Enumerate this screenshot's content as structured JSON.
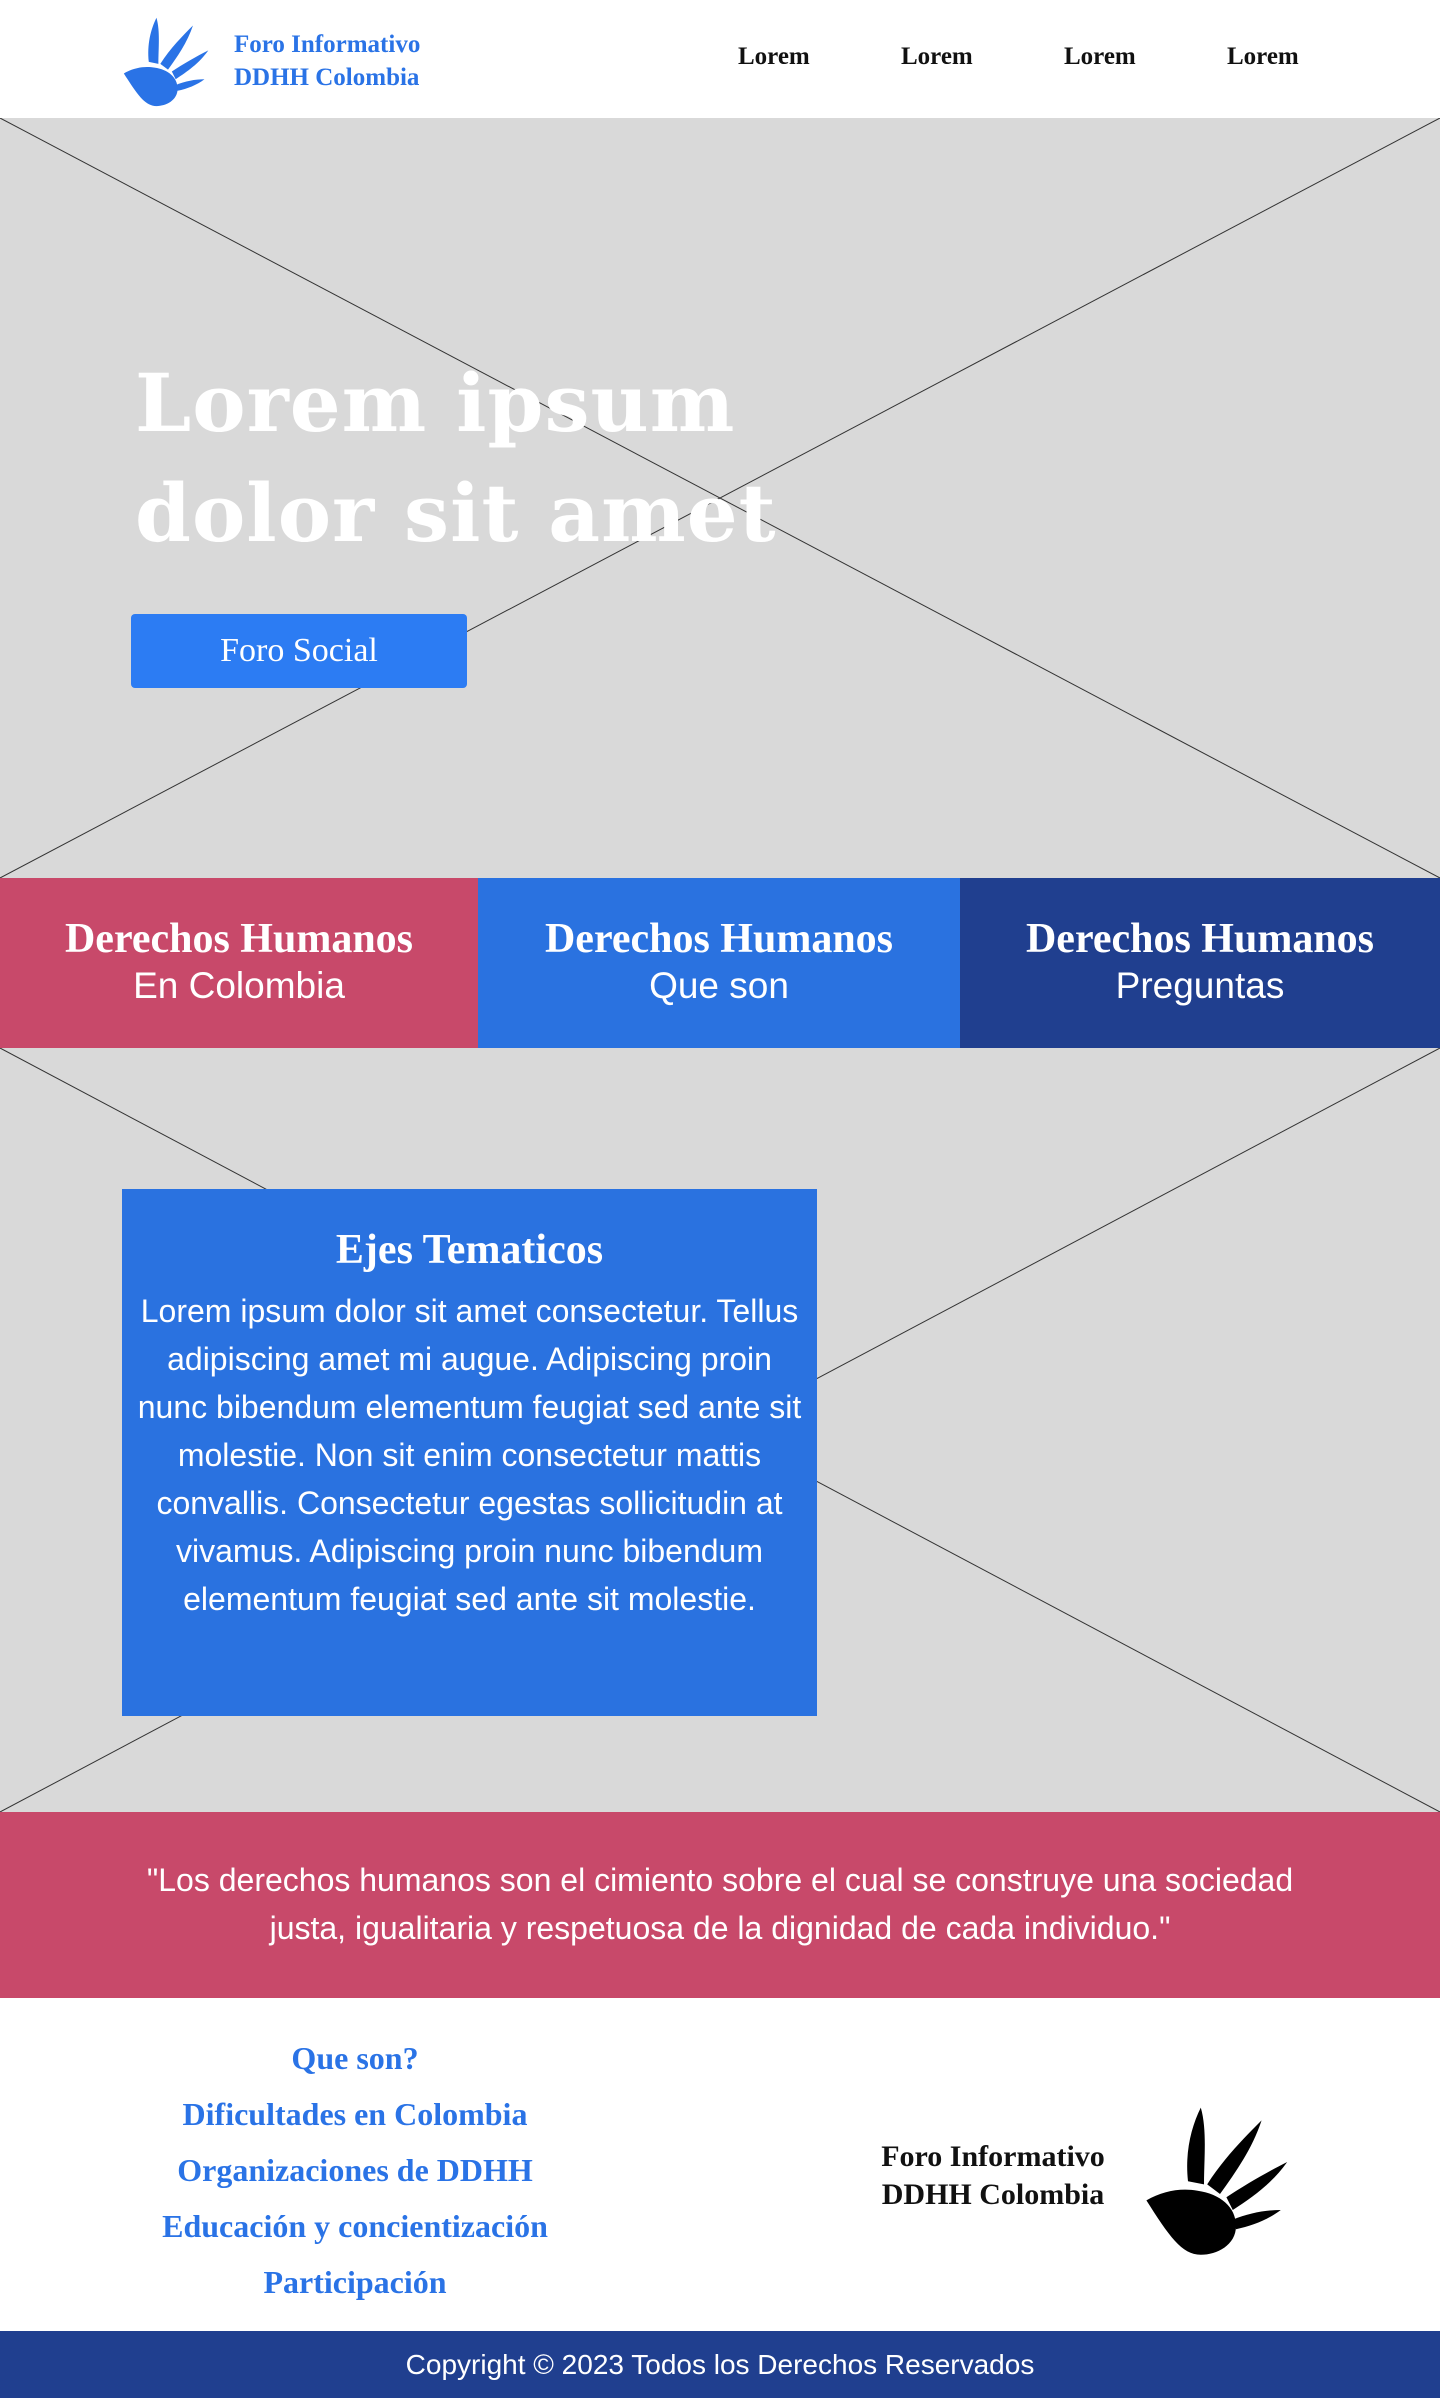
{
  "header": {
    "brand_line1": "Foro Informativo",
    "brand_line2": "DDHH Colombia",
    "logo_icon": "hand-dove-icon",
    "nav": [
      "Lorem",
      "Lorem",
      "Lorem",
      "Lorem"
    ]
  },
  "hero": {
    "title": "Lorem ipsum dolor sit amet",
    "button_label": "Foro Social"
  },
  "cards": [
    {
      "title": "Derechos Humanos",
      "subtitle": "En Colombia",
      "color": "#c8496a"
    },
    {
      "title": "Derechos Humanos",
      "subtitle": "Que son",
      "color": "#2a72e0"
    },
    {
      "title": "Derechos Humanos",
      "subtitle": "Preguntas",
      "color": "#203f8f"
    }
  ],
  "ejes": {
    "title": "Ejes Tematicos",
    "body": "Lorem ipsum dolor sit amet consectetur. Tellus adipiscing amet mi augue. Adipiscing proin nunc bibendum elementum feugiat sed ante sit molestie. Non sit enim consectetur mattis convallis. Consectetur egestas sollicitudin at vivamus. Adipiscing proin nunc bibendum elementum feugiat sed ante sit molestie."
  },
  "quote": {
    "text": "\"Los derechos humanos son el cimiento sobre el cual se construye una sociedad justa, igualitaria y respetuosa de la dignidad de cada individuo.\""
  },
  "footer": {
    "links": [
      "Que son?",
      "Dificultades en Colombia",
      "Organizaciones de DDHH",
      "Educación y concientización",
      "Participación"
    ],
    "brand_line1": "Foro Informativo",
    "brand_line2": "DDHH Colombia",
    "logo_icon": "hand-dove-icon",
    "copyright": "Copyright © 2023 Todos los Derechos Reservados"
  },
  "colors": {
    "brand_blue": "#2a73e6",
    "button_blue": "#2c7cf3",
    "rose": "#c8496a",
    "navy": "#203f8f",
    "placeholder_gray": "#d9d9d9"
  }
}
